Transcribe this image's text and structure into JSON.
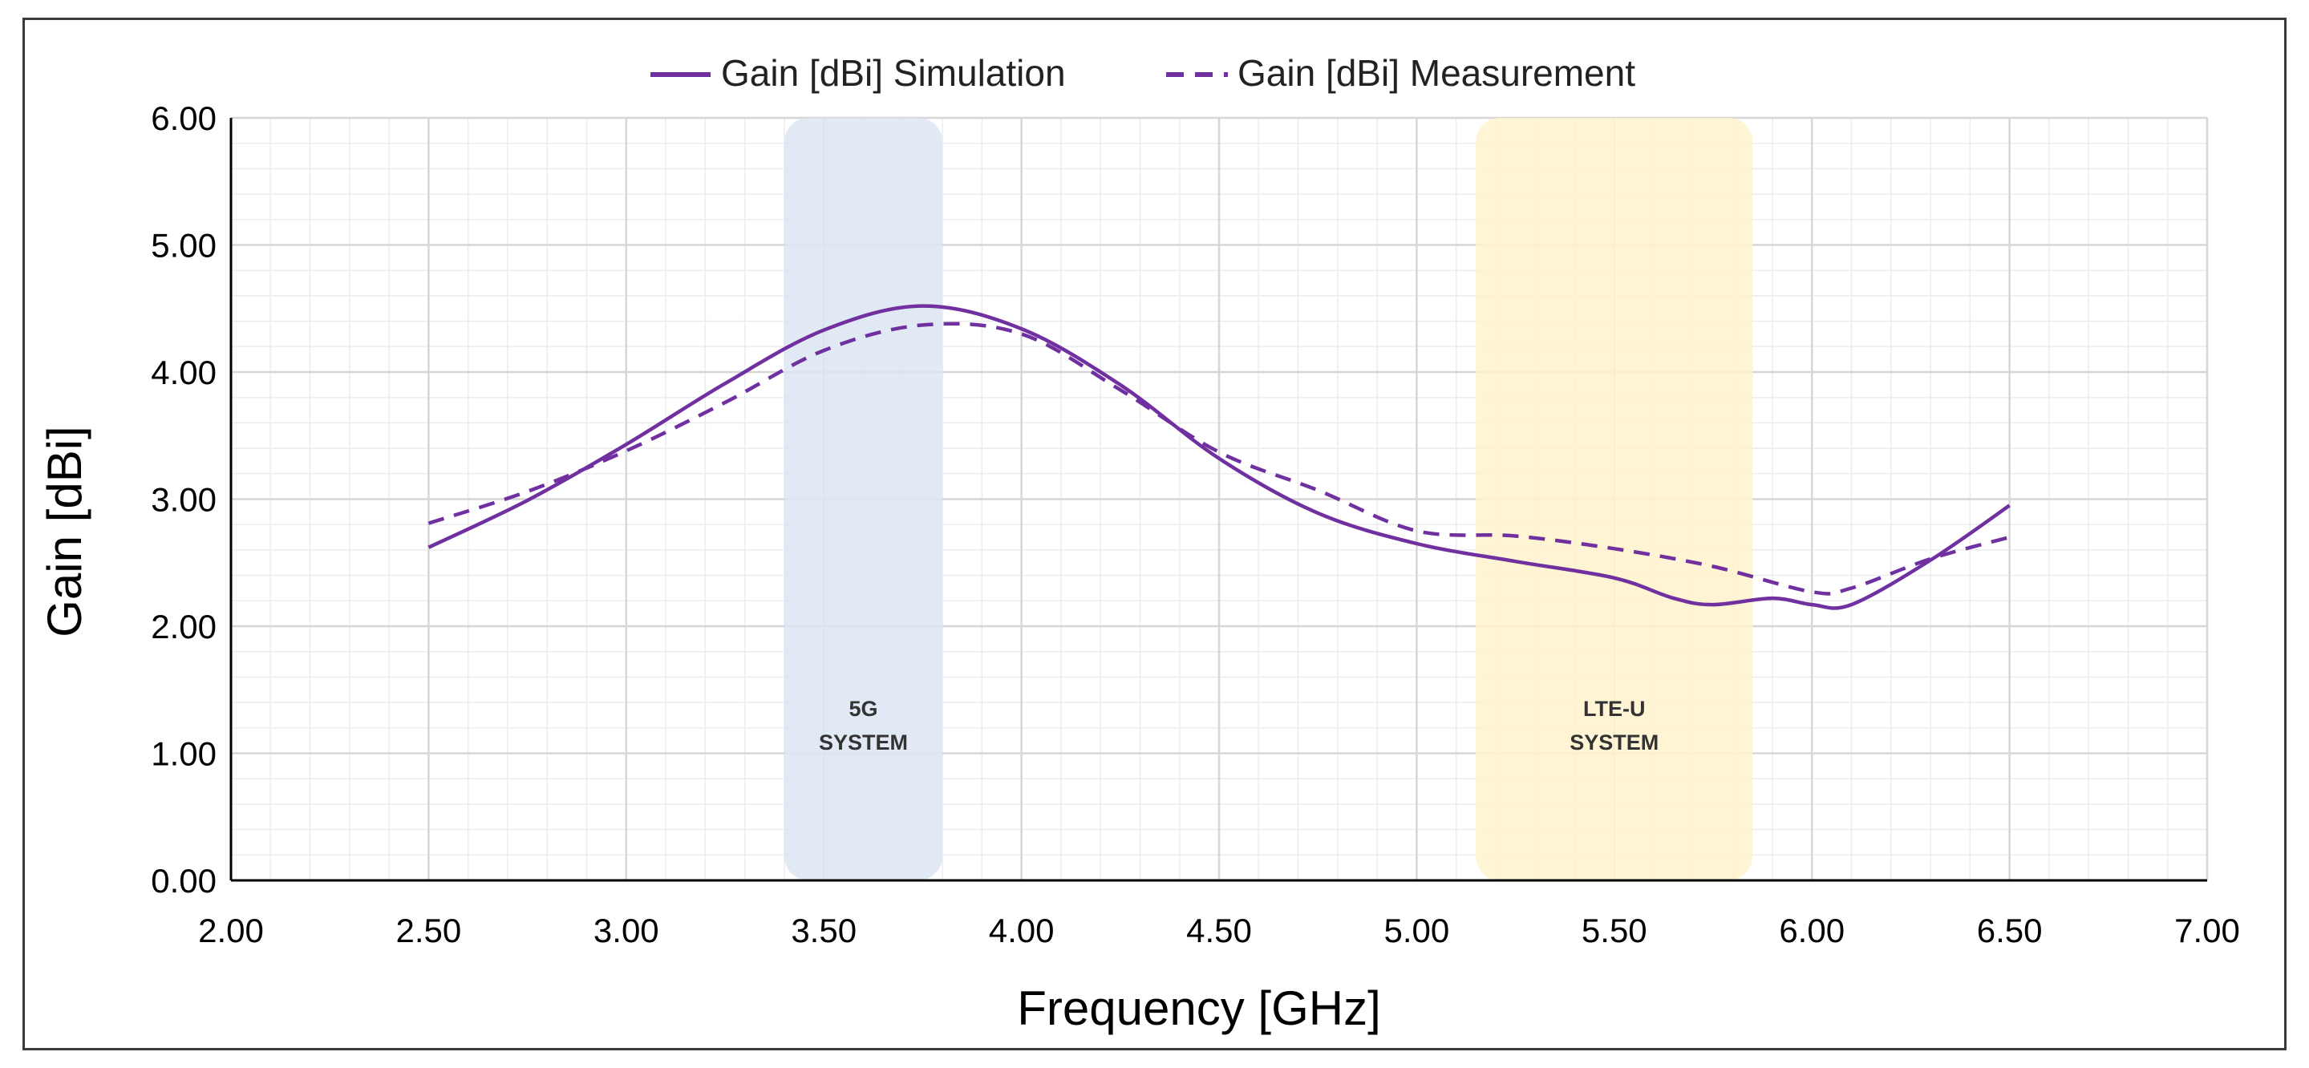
{
  "chart_data": {
    "type": "line",
    "title": "",
    "xlabel": "Frequency [GHz]",
    "ylabel": "Gain [dBi]",
    "xlim": [
      2.0,
      7.0
    ],
    "ylim": [
      0.0,
      6.0
    ],
    "xticks": [
      2.0,
      2.5,
      3.0,
      3.5,
      4.0,
      4.5,
      5.0,
      5.5,
      6.0,
      6.5,
      7.0
    ],
    "yticks": [
      0.0,
      1.0,
      2.0,
      3.0,
      4.0,
      5.0,
      6.0
    ],
    "xtick_labels": [
      "2.00",
      "2.50",
      "3.00",
      "3.50",
      "4.00",
      "4.50",
      "5.00",
      "5.50",
      "6.00",
      "6.50",
      "7.00"
    ],
    "ytick_labels": [
      "0.00",
      "1.00",
      "2.00",
      "3.00",
      "4.00",
      "5.00",
      "6.00"
    ],
    "grid": true,
    "legend_position": "top-center",
    "series": [
      {
        "name": "Gain [dBi] Simulation",
        "style": "solid",
        "color": "#7030A0",
        "x": [
          2.5,
          2.75,
          3.0,
          3.25,
          3.5,
          3.75,
          4.0,
          4.25,
          4.5,
          4.75,
          5.0,
          5.25,
          5.5,
          5.65,
          5.75,
          5.9,
          6.0,
          6.1,
          6.3,
          6.5
        ],
        "y": [
          2.62,
          2.99,
          3.43,
          3.91,
          4.33,
          4.52,
          4.34,
          3.9,
          3.32,
          2.89,
          2.65,
          2.51,
          2.38,
          2.22,
          2.17,
          2.22,
          2.17,
          2.17,
          2.52,
          2.95
        ]
      },
      {
        "name": "Gain [dBi] Measurement",
        "style": "dashed",
        "color": "#7030A0",
        "x": [
          2.5,
          2.75,
          3.0,
          3.25,
          3.5,
          3.75,
          4.0,
          4.25,
          4.5,
          4.75,
          5.0,
          5.25,
          5.5,
          5.75,
          6.0,
          6.1,
          6.3,
          6.5
        ],
        "y": [
          2.81,
          3.06,
          3.38,
          3.76,
          4.17,
          4.37,
          4.3,
          3.86,
          3.37,
          3.07,
          2.75,
          2.71,
          2.61,
          2.47,
          2.27,
          2.3,
          2.53,
          2.7
        ]
      }
    ],
    "bands": [
      {
        "label_line1": "5G",
        "label_line2": "SYSTEM",
        "x_start": 3.4,
        "x_end": 3.8,
        "y_start": 0.0,
        "y_end": 6.0,
        "color": "#DCE6F2"
      },
      {
        "label_line1": "LTE-U",
        "label_line2": "SYSTEM",
        "x_start": 5.15,
        "x_end": 5.85,
        "y_start": 0.0,
        "y_end": 6.0,
        "color": "#FFF2CC"
      }
    ]
  }
}
